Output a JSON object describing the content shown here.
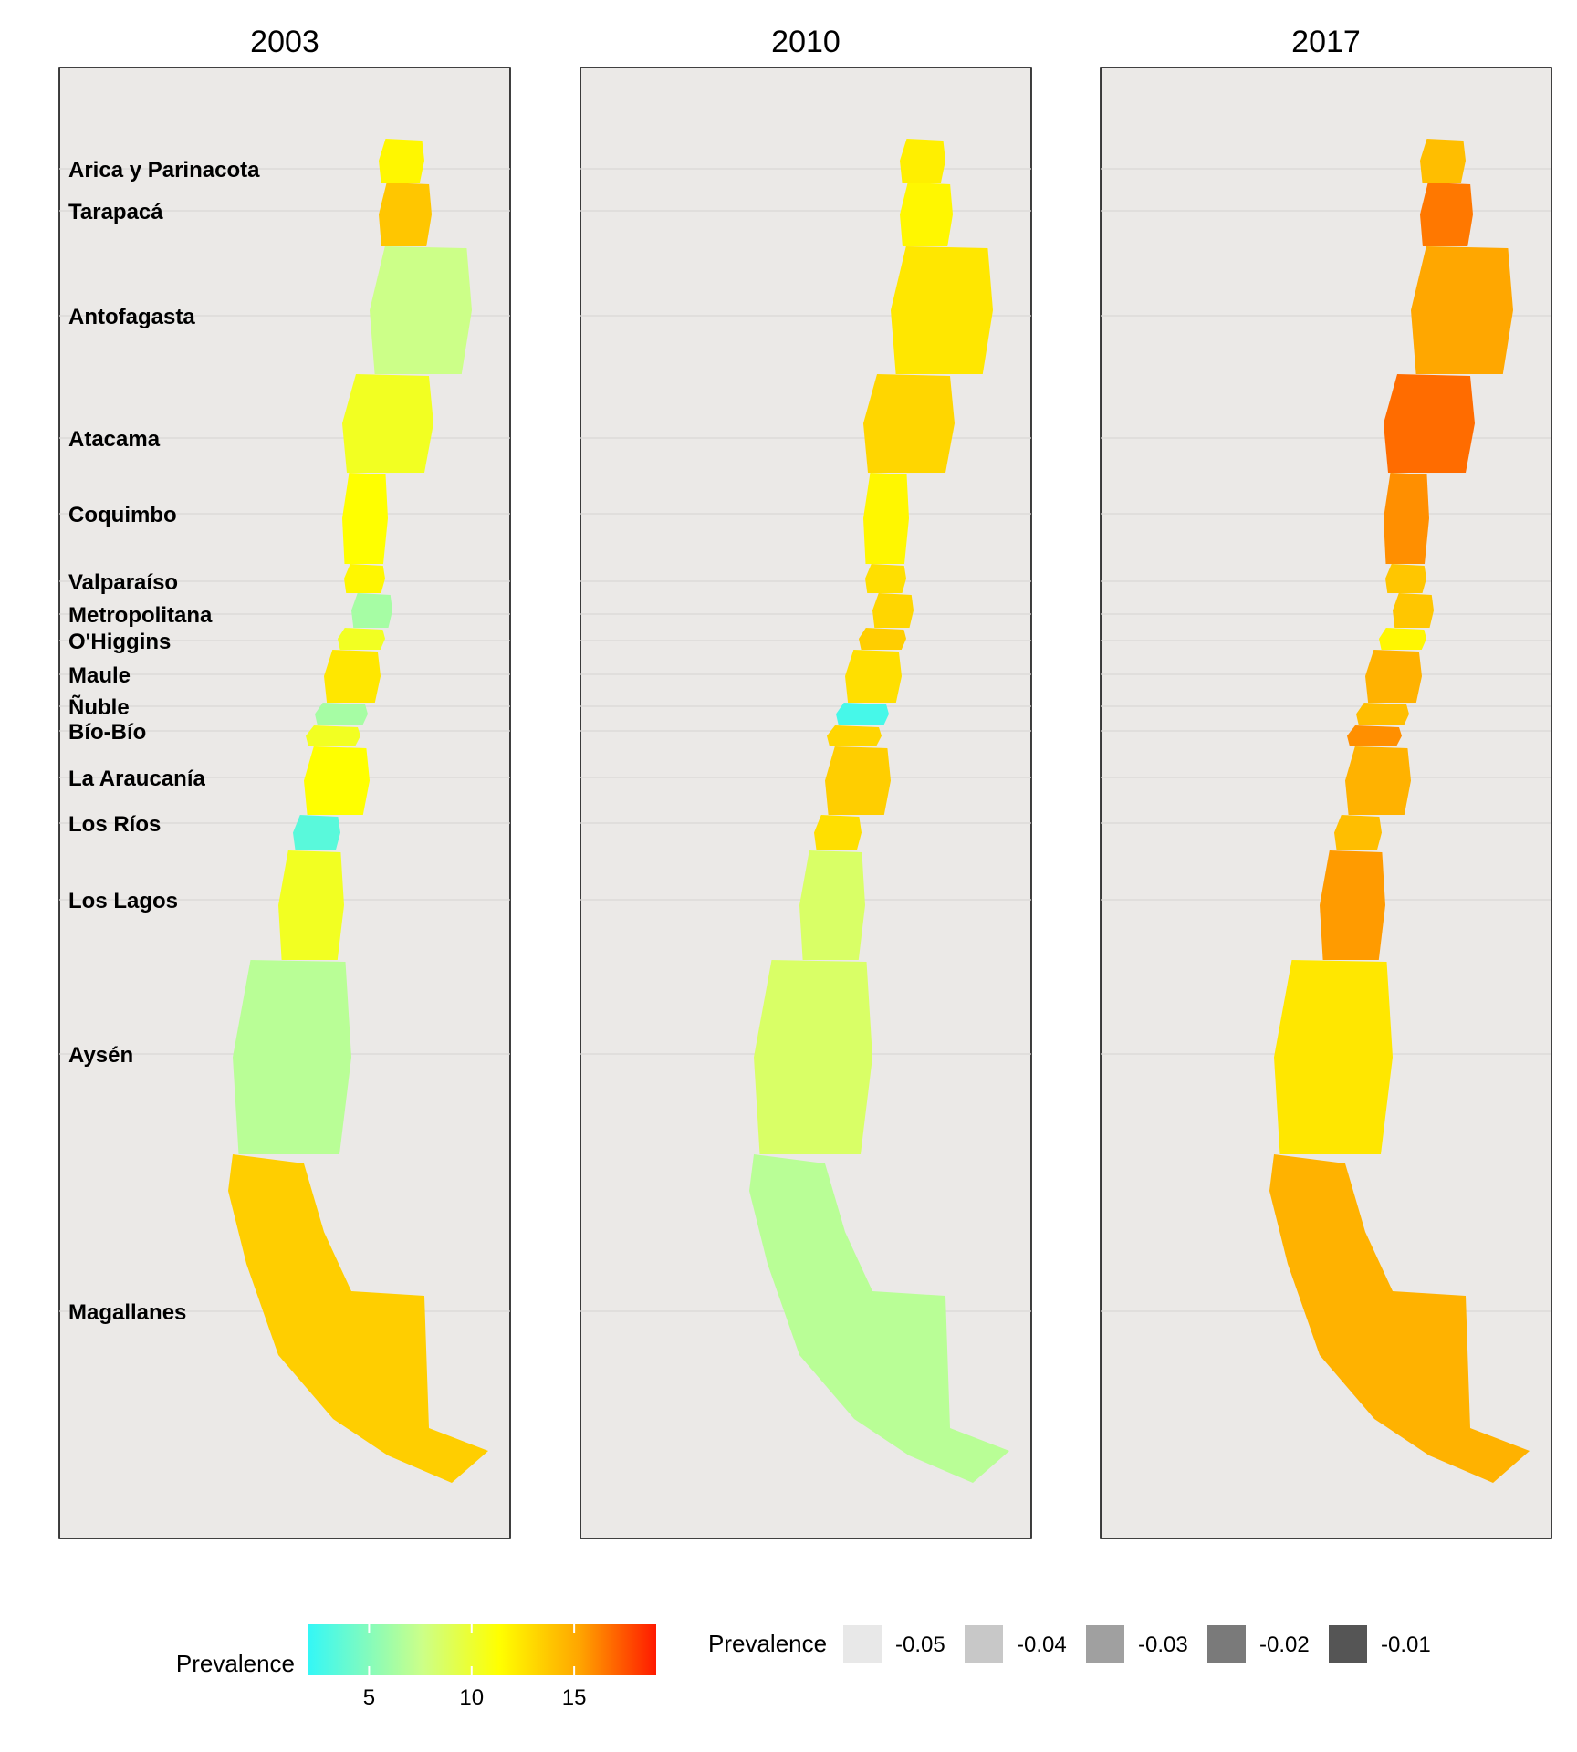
{
  "chart_data": {
    "type": "choropleth",
    "panels": [
      {
        "title": "2003",
        "regions": [
          {
            "name": "Arica y Parinacota",
            "value": 8.5
          },
          {
            "name": "Tarapacá",
            "value": 11.5
          },
          {
            "name": "Antofagasta",
            "value": 6.0
          },
          {
            "name": "Atacama",
            "value": 7.5
          },
          {
            "name": "Coquimbo",
            "value": 8.0
          },
          {
            "name": "Valparaíso",
            "value": 8.5
          },
          {
            "name": "Metropolitana",
            "value": 5.0
          },
          {
            "name": "O'Higgins",
            "value": 7.5
          },
          {
            "name": "Maule",
            "value": 9.5
          },
          {
            "name": "Ñuble",
            "value": 5.0
          },
          {
            "name": "Bío-Bío",
            "value": 7.5
          },
          {
            "name": "La Araucanía",
            "value": 8.0
          },
          {
            "name": "Los Ríos",
            "value": 3.0
          },
          {
            "name": "Los Lagos",
            "value": 7.5
          },
          {
            "name": "Aysén",
            "value": 5.5
          },
          {
            "name": "Magallanes",
            "value": 11.0
          }
        ]
      },
      {
        "title": "2010",
        "regions": [
          {
            "name": "Arica y Parinacota",
            "value": 9.0
          },
          {
            "name": "Tarapacá",
            "value": 8.5
          },
          {
            "name": "Antofagasta",
            "value": 9.5
          },
          {
            "name": "Atacama",
            "value": 10.5
          },
          {
            "name": "Coquimbo",
            "value": 8.5
          },
          {
            "name": "Valparaíso",
            "value": 10.0
          },
          {
            "name": "Metropolitana",
            "value": 10.5
          },
          {
            "name": "O'Higgins",
            "value": 11.0
          },
          {
            "name": "Maule",
            "value": 10.0
          },
          {
            "name": "Ñuble",
            "value": 2.5
          },
          {
            "name": "Bío-Bío",
            "value": 10.5
          },
          {
            "name": "La Araucanía",
            "value": 11.0
          },
          {
            "name": "Los Ríos",
            "value": 10.0
          },
          {
            "name": "Los Lagos",
            "value": 6.5
          },
          {
            "name": "Aysén",
            "value": 6.5
          },
          {
            "name": "Magallanes",
            "value": 5.5
          }
        ]
      },
      {
        "title": "2017",
        "regions": [
          {
            "name": "Arica y Parinacota",
            "value": 12.0
          },
          {
            "name": "Tarapacá",
            "value": 15.0
          },
          {
            "name": "Antofagasta",
            "value": 13.0
          },
          {
            "name": "Atacama",
            "value": 15.5
          },
          {
            "name": "Coquimbo",
            "value": 14.0
          },
          {
            "name": "Valparaíso",
            "value": 11.5
          },
          {
            "name": "Metropolitana",
            "value": 11.5
          },
          {
            "name": "O'Higgins",
            "value": 8.5
          },
          {
            "name": "Maule",
            "value": 12.5
          },
          {
            "name": "Ñuble",
            "value": 12.0
          },
          {
            "name": "Bío-Bío",
            "value": 14.0
          },
          {
            "name": "La Araucanía",
            "value": 12.5
          },
          {
            "name": "Los Ríos",
            "value": 12.0
          },
          {
            "name": "Los Lagos",
            "value": 13.5
          },
          {
            "name": "Aysén",
            "value": 9.5
          },
          {
            "name": "Magallanes",
            "value": 12.5
          }
        ]
      }
    ],
    "region_labels": [
      "Arica y Parinacota",
      "Tarapacá",
      "Antofagasta",
      "Atacama",
      "Coquimbo",
      "Valparaíso",
      "Metropolitana",
      "O'Higgins",
      "Maule",
      "Ñuble",
      "Bío-Bío",
      "La Araucanía",
      "Los Ríos",
      "Los Lagos",
      "Aysén",
      "Magallanes"
    ],
    "color_scale": {
      "title": "Prevalence",
      "range": [
        2,
        19
      ],
      "ticks": [
        5,
        10,
        15
      ],
      "colors": [
        "#33f7f7",
        "#ffff00",
        "#ff1a00"
      ]
    },
    "missing_legend": {
      "title": "Prevalence",
      "items": [
        {
          "label": "-0.05",
          "color": "#e8e8e8"
        },
        {
          "label": "-0.04",
          "color": "#c8c8c8"
        },
        {
          "label": "-0.03",
          "color": "#a0a0a0"
        },
        {
          "label": "-0.02",
          "color": "#7a7a7a"
        },
        {
          "label": "-0.01",
          "color": "#555555"
        }
      ]
    },
    "panel_background": "#ebe9e7",
    "grid": true
  }
}
